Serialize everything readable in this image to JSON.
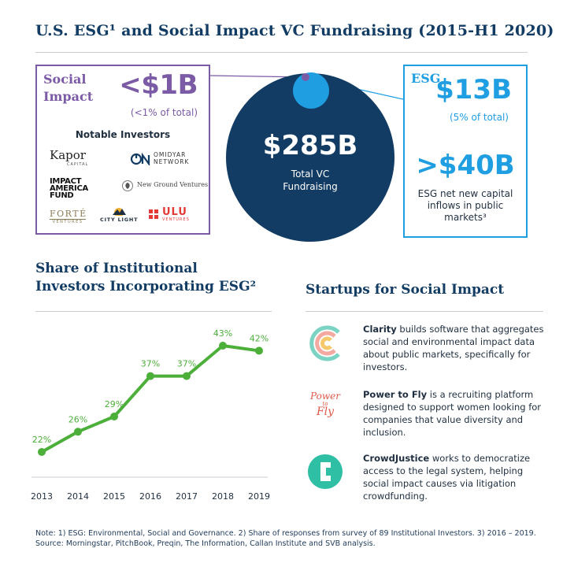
{
  "title": "U.S. ESG¹ and Social Impact VC Fundraising (2015-H1 2020)",
  "social_impact": {
    "heading_line1": "Social",
    "heading_line2": "Impact",
    "amount": "<$1B",
    "sub": "(<1% of total)",
    "notable": "Notable Investors",
    "logos": [
      "Kapor",
      "CAPITAL",
      "OMIDYAR",
      "NETWORK",
      "IMPACT",
      "AMERICA",
      "FUND",
      "New Ground Ventures",
      "FORTÉ",
      "VENTURES",
      "CITY LIGHT",
      "ULU",
      "VENTURES"
    ]
  },
  "center": {
    "amount": "$285B",
    "label1": "Total VC",
    "label2": "Fundraising"
  },
  "esg": {
    "heading": "ESG",
    "amount": "$13B",
    "sub": "(5% of total)",
    "amount2": ">$40B",
    "note1": "ESG net new capital",
    "note2": "inflows in public",
    "note3": "markets³"
  },
  "share_title_line1": "Share of Institutional",
  "share_title_line2": "Investors Incorporating ESG²",
  "startups_title": "Startups for Social Impact",
  "startups": [
    {
      "name": "Clarity",
      "text": " builds software that aggregates social and environmental impact data about public markets, specifically for investors."
    },
    {
      "name": "Power to Fly",
      "text": " is a recruiting platform designed to support women looking for companies that value diversity and inclusion."
    },
    {
      "name": "CrowdJustice",
      "text": " works to democratize access to the legal system, helping social impact causes via litigation crowdfunding."
    }
  ],
  "logo_text": {
    "power_to_fly_1": "Power",
    "power_to_fly_2": "to",
    "power_to_fly_3": "Fly"
  },
  "footnote_line1": "Note: 1) ESG: Environmental, Social and Governance. 2) Share of responses from survey of 89 Institutional Investors. 3) 2016 – 2019.",
  "footnote_line2": "Source: Morningstar, PitchBook, Preqin, The Information, Callan Institute and SVB analysis.",
  "colors": {
    "navy": "#123c63",
    "purple": "#7b5aa6",
    "blue": "#1f9ee2",
    "green": "#4caf3a"
  },
  "chart_data": {
    "type": "line",
    "categories": [
      "2013",
      "2014",
      "2015",
      "2016",
      "2017",
      "2018",
      "2019"
    ],
    "values": [
      22,
      26,
      29,
      37,
      37,
      43,
      42
    ],
    "data_labels": [
      "22%",
      "26%",
      "29%",
      "37%",
      "37%",
      "43%",
      "42%"
    ],
    "title": "Share of Institutional Investors Incorporating ESG²",
    "xlabel": "",
    "ylabel": "",
    "grid": false,
    "line_color": "#4caf3a"
  }
}
